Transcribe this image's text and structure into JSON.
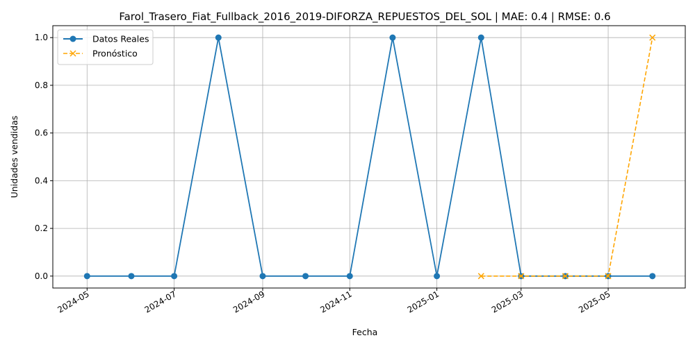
{
  "chart_data": {
    "type": "line",
    "title": "Farol_Trasero_Fiat_Fullback_2016_2019-DIFORZA_REPUESTOS_DEL_SOL | MAE: 0.4 | RMSE: 0.6",
    "xlabel": "Fecha",
    "ylabel": "Unidades vendidas",
    "ylim": [
      -0.05,
      1.05
    ],
    "xlim": [
      "2024-04-07",
      "2025-06-24"
    ],
    "grid": true,
    "legend_position": "top-left",
    "x_ticks": [
      "2024-05",
      "2024-07",
      "2024-09",
      "2024-11",
      "2025-01",
      "2025-03",
      "2025-05"
    ],
    "y_ticks": [
      0.0,
      0.2,
      0.4,
      0.6,
      0.8,
      1.0
    ],
    "series": [
      {
        "name": "Datos Reales",
        "color": "#1f77b4",
        "style": "solid",
        "marker": "circle",
        "x": [
          "2024-05-01",
          "2024-06-01",
          "2024-07-01",
          "2024-08-01",
          "2024-09-01",
          "2024-10-01",
          "2024-11-01",
          "2024-12-01",
          "2025-01-01",
          "2025-02-01",
          "2025-03-01",
          "2025-04-01",
          "2025-05-01",
          "2025-06-01"
        ],
        "values": [
          0,
          0,
          0,
          1,
          0,
          0,
          0,
          1,
          0,
          1,
          0,
          0,
          0,
          0
        ]
      },
      {
        "name": "Pronóstico",
        "color": "#ffa500",
        "style": "dashed",
        "marker": "x",
        "x": [
          "2025-02-01",
          "2025-03-01",
          "2025-04-01",
          "2025-05-01",
          "2025-06-01"
        ],
        "values": [
          0,
          0,
          0,
          0,
          1
        ]
      }
    ]
  }
}
